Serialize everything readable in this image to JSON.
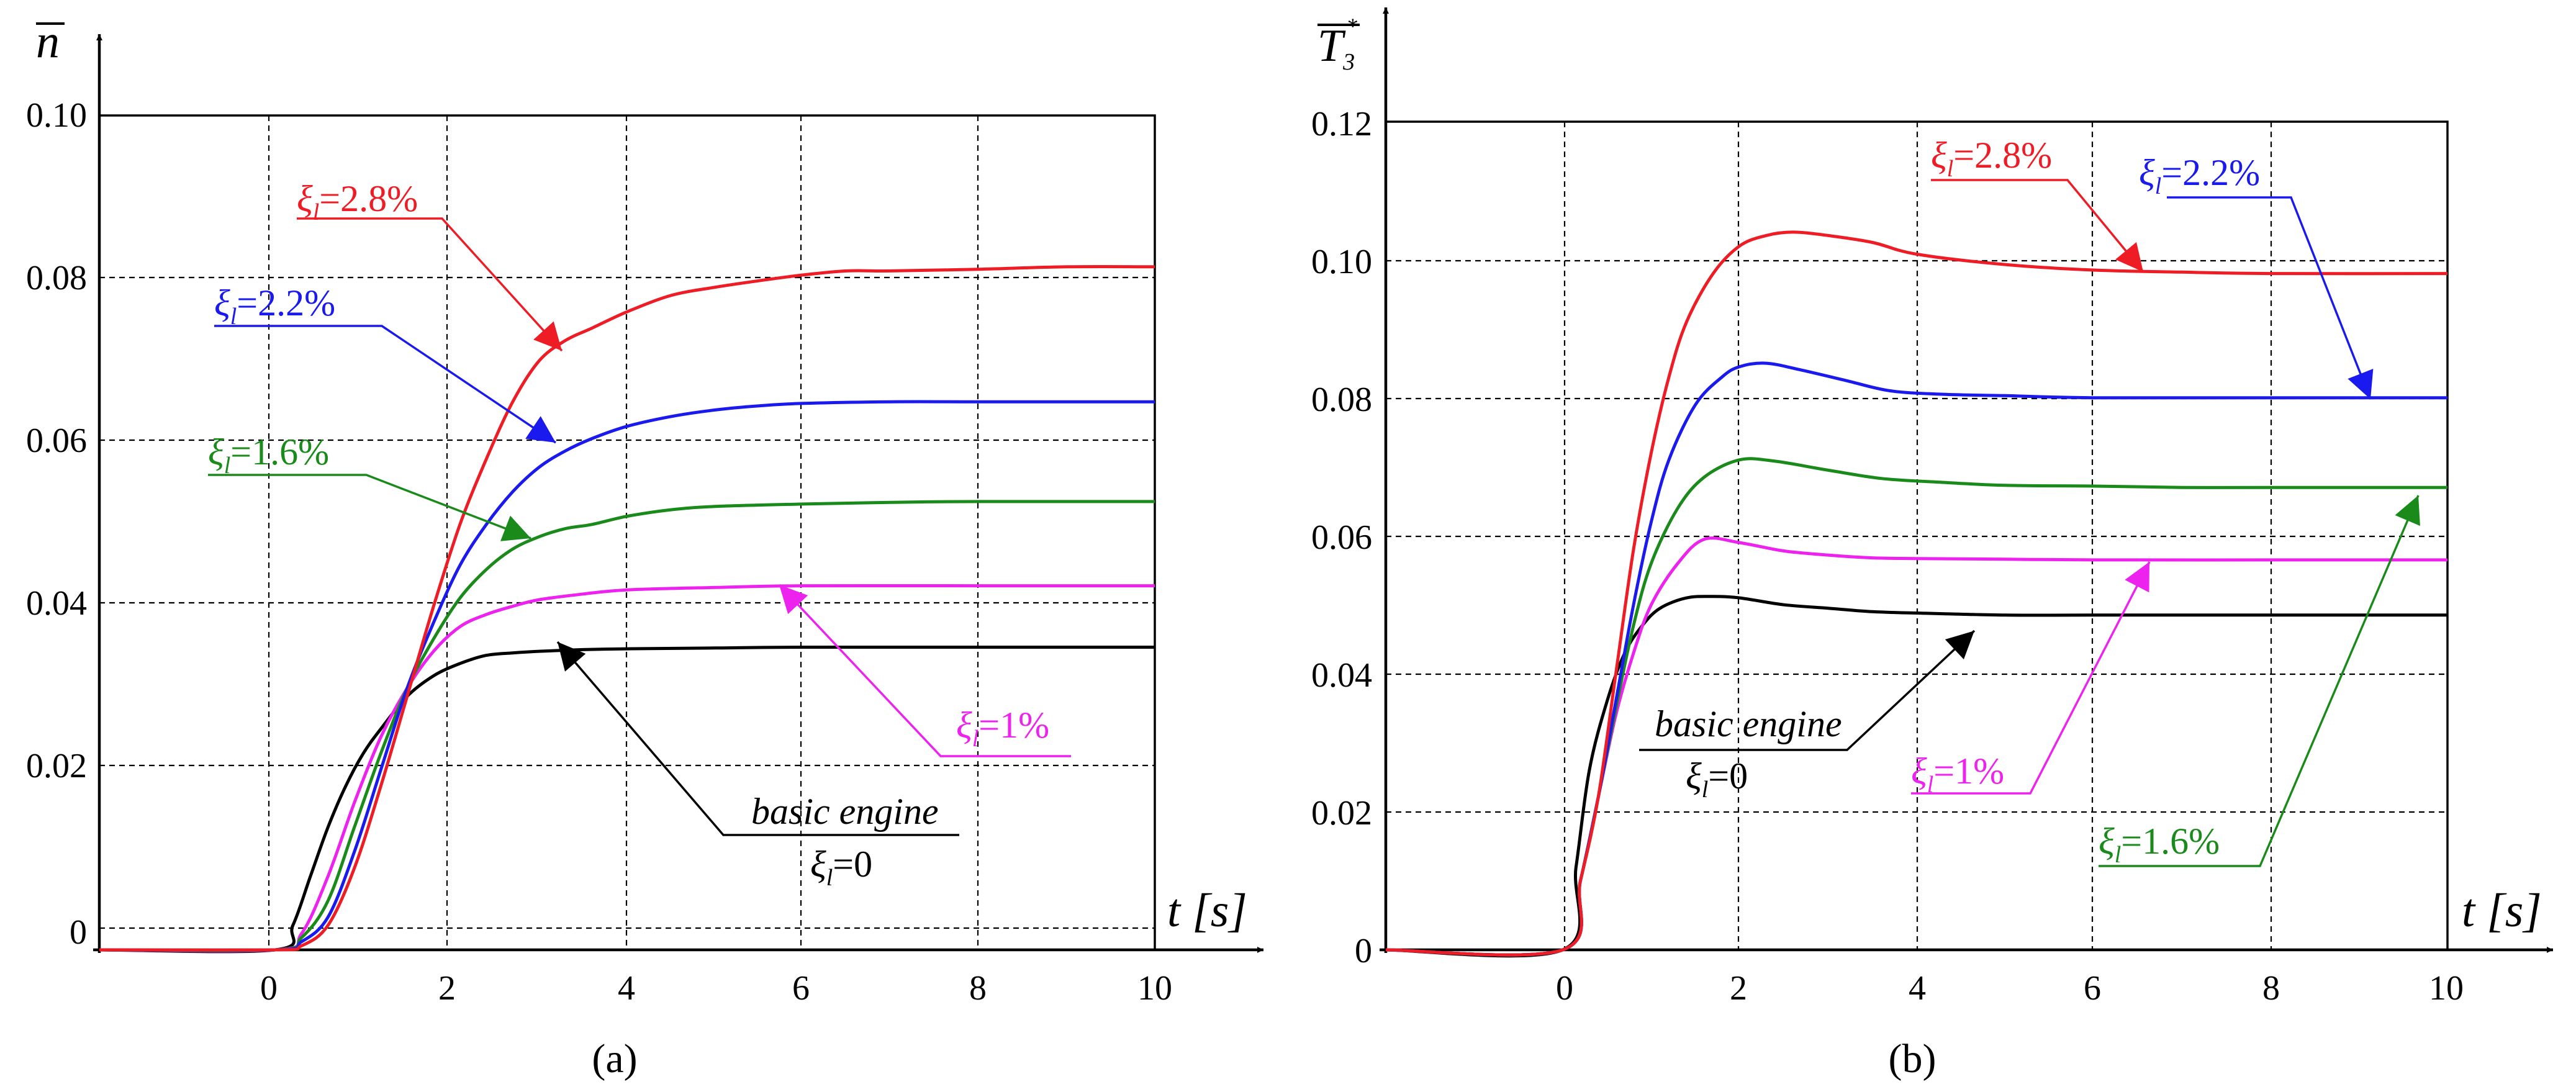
{
  "panels": {
    "a": {
      "subfigure": "(a)",
      "ylabel": "n",
      "xlabel": "t [s]",
      "xticks": [
        "0",
        "2",
        "4",
        "6",
        "8",
        "10"
      ],
      "yticks": [
        "0",
        "0.02",
        "0.04",
        "0.06",
        "0.08",
        "0.10"
      ],
      "annotations": {
        "red": {
          "greek": "ξ",
          "sub": "l",
          "value": "=2.8%"
        },
        "blue": {
          "greek": "ξ",
          "sub": "l",
          "value": "=2.2%"
        },
        "green": {
          "greek": "ξ",
          "sub": "l",
          "value": "=1.6%"
        },
        "magenta": {
          "greek": "ξ",
          "sub": "l",
          "value": "=1%"
        },
        "black": {
          "line1": "basic engine",
          "greek": "ξ",
          "sub": "l",
          "value": "=0"
        }
      }
    },
    "b": {
      "subfigure": "(b)",
      "ylabel_base": "T",
      "ylabel_sub": "3",
      "ylabel_sup": "*",
      "xlabel": "t [s]",
      "xticks": [
        "0",
        "2",
        "4",
        "6",
        "8",
        "10"
      ],
      "yticks": [
        "0",
        "0.02",
        "0.04",
        "0.06",
        "0.08",
        "0.10",
        "0.12"
      ],
      "annotations": {
        "red": {
          "greek": "ξ",
          "sub": "l",
          "value": "=2.8%"
        },
        "blue": {
          "greek": "ξ",
          "sub": "l",
          "value": "=2.2%"
        },
        "green": {
          "greek": "ξ",
          "sub": "l",
          "value": "=1.6%"
        },
        "magenta": {
          "greek": "ξ",
          "sub": "l",
          "value": "=1%"
        },
        "black": {
          "line1": "basic engine",
          "greek": "ξ",
          "sub": "l",
          "value": "=0"
        }
      }
    }
  },
  "colors": {
    "red": "#ee1c25",
    "blue": "#1a1aee",
    "green": "#1a8a1a",
    "magenta": "#ee22ee",
    "black": "#000000"
  },
  "chart_data": [
    {
      "type": "line",
      "title": "(a)",
      "xlabel": "t [s]",
      "ylabel": "n (overline)",
      "xlim": [
        -2,
        10
      ],
      "ylim": [
        -0.002,
        0.1
      ],
      "grid": true,
      "series": [
        {
          "name": "ξl=2.8%",
          "color": "red",
          "x": [
            -2,
            0,
            0.3,
            0.6,
            0.9,
            1.2,
            1.5,
            1.8,
            2.1,
            2.4,
            2.7,
            3.0,
            3.3,
            3.6,
            4.0,
            4.5,
            5.0,
            5.5,
            6.0,
            6.5,
            7.0,
            8.0,
            9.0,
            10.0
          ],
          "y": [
            -0.002,
            -0.002,
            -0.0015,
            0.001,
            0.008,
            0.018,
            0.029,
            0.04,
            0.05,
            0.058,
            0.065,
            0.07,
            0.0725,
            0.074,
            0.076,
            0.078,
            0.079,
            0.0798,
            0.0805,
            0.081,
            0.081,
            0.0812,
            0.0815,
            0.0815
          ]
        },
        {
          "name": "ξl=2.2%",
          "color": "blue",
          "x": [
            -2,
            0,
            0.3,
            0.6,
            0.9,
            1.2,
            1.5,
            1.8,
            2.1,
            2.4,
            2.7,
            3.0,
            3.3,
            3.6,
            4.0,
            4.5,
            5.0,
            5.5,
            6.0,
            7.0,
            8.0,
            10.0
          ],
          "y": [
            -0.002,
            -0.002,
            -0.001,
            0.002,
            0.01,
            0.02,
            0.03,
            0.038,
            0.045,
            0.05,
            0.054,
            0.057,
            0.059,
            0.0605,
            0.062,
            0.0632,
            0.064,
            0.0645,
            0.0648,
            0.065,
            0.065,
            0.065
          ]
        },
        {
          "name": "ξl=1.6%",
          "color": "green",
          "x": [
            -2,
            0,
            0.3,
            0.6,
            0.9,
            1.2,
            1.5,
            1.8,
            2.1,
            2.4,
            2.7,
            3.0,
            3.3,
            3.6,
            4.0,
            4.5,
            5.0,
            6.0,
            7.0,
            8.0,
            10.0
          ],
          "y": [
            -0.002,
            -0.002,
            -0.0005,
            0.004,
            0.013,
            0.022,
            0.03,
            0.036,
            0.041,
            0.0445,
            0.047,
            0.0485,
            0.0495,
            0.05,
            0.051,
            0.0518,
            0.0522,
            0.0525,
            0.0527,
            0.0528,
            0.0528
          ]
        },
        {
          "name": "ξl=1%",
          "color": "magenta",
          "x": [
            -2,
            0,
            0.3,
            0.6,
            0.9,
            1.2,
            1.5,
            1.8,
            2.1,
            2.4,
            2.7,
            3.0,
            3.5,
            4.0,
            5.0,
            6.0,
            8.0,
            10.0
          ],
          "y": [
            -0.002,
            -0.002,
            0.0,
            0.007,
            0.016,
            0.024,
            0.03,
            0.0345,
            0.0375,
            0.039,
            0.04,
            0.0408,
            0.0415,
            0.042,
            0.0423,
            0.0425,
            0.0425,
            0.0425
          ]
        },
        {
          "name": "basic engine ξl=0",
          "color": "black",
          "x": [
            -2,
            0,
            0.2,
            0.4,
            0.6,
            0.8,
            1.0,
            1.2,
            1.5,
            1.8,
            2.1,
            2.4,
            2.7,
            3.0,
            3.5,
            4.0,
            5.0,
            6.0,
            8.0,
            10.0
          ],
          "y": [
            -0.002,
            -0.002,
            0.001,
            0.007,
            0.013,
            0.018,
            0.022,
            0.025,
            0.029,
            0.0315,
            0.033,
            0.034,
            0.0343,
            0.0345,
            0.0347,
            0.0348,
            0.0349,
            0.035,
            0.035,
            0.035
          ]
        }
      ]
    },
    {
      "type": "line",
      "title": "(b)",
      "xlabel": "t [s]",
      "ylabel": "T3* (overline)",
      "xlim": [
        -2,
        10
      ],
      "ylim": [
        0,
        0.12
      ],
      "grid": true,
      "series": [
        {
          "name": "ξl=2.8%",
          "color": "red",
          "x": [
            -2,
            0,
            0.2,
            0.4,
            0.6,
            0.8,
            1.0,
            1.2,
            1.4,
            1.7,
            2.0,
            2.3,
            2.6,
            3.0,
            3.5,
            4.0,
            5.0,
            6.0,
            7.0,
            8.0,
            10.0
          ],
          "y": [
            0,
            0,
            0.01,
            0.022,
            0.04,
            0.058,
            0.072,
            0.083,
            0.091,
            0.098,
            0.102,
            0.1035,
            0.104,
            0.1035,
            0.1025,
            0.1008,
            0.0993,
            0.0985,
            0.0982,
            0.098,
            0.098
          ]
        },
        {
          "name": "ξl=2.2%",
          "color": "blue",
          "x": [
            -2,
            0,
            0.2,
            0.4,
            0.6,
            0.8,
            1.0,
            1.2,
            1.5,
            1.8,
            2.0,
            2.3,
            2.7,
            3.2,
            3.7,
            4.3,
            5.0,
            6.0,
            8.0,
            10.0
          ],
          "y": [
            0,
            0,
            0.01,
            0.022,
            0.036,
            0.05,
            0.062,
            0.071,
            0.079,
            0.083,
            0.0845,
            0.085,
            0.084,
            0.0825,
            0.081,
            0.0805,
            0.0803,
            0.08,
            0.08,
            0.08
          ]
        },
        {
          "name": "ξl=1.6%",
          "color": "green",
          "x": [
            -2,
            0,
            0.2,
            0.4,
            0.6,
            0.8,
            1.0,
            1.3,
            1.6,
            2.0,
            2.4,
            3.0,
            3.6,
            4.2,
            5.0,
            6.0,
            7.0,
            8.0,
            10.0
          ],
          "y": [
            0,
            0,
            0.01,
            0.022,
            0.035,
            0.047,
            0.056,
            0.064,
            0.0685,
            0.071,
            0.0708,
            0.0695,
            0.0683,
            0.0678,
            0.0673,
            0.0672,
            0.067,
            0.067,
            0.067
          ]
        },
        {
          "name": "ξl=1%",
          "color": "magenta",
          "x": [
            -2,
            0,
            0.2,
            0.4,
            0.6,
            0.8,
            1.0,
            1.3,
            1.6,
            2.0,
            2.5,
            3.0,
            3.5,
            4.0,
            5.0,
            6.0,
            8.0,
            10.0
          ],
          "y": [
            0,
            0,
            0.01,
            0.022,
            0.034,
            0.043,
            0.05,
            0.056,
            0.0595,
            0.059,
            0.0578,
            0.0572,
            0.0568,
            0.0567,
            0.0566,
            0.0565,
            0.0565,
            0.0565
          ]
        },
        {
          "name": "basic engine ξl=0",
          "color": "black",
          "x": [
            -2,
            0,
            0.15,
            0.3,
            0.5,
            0.7,
            0.9,
            1.1,
            1.4,
            1.7,
            2.0,
            2.5,
            3.0,
            3.5,
            4.0,
            5.0,
            6.0,
            8.0,
            10.0
          ],
          "y": [
            0,
            0,
            0.012,
            0.026,
            0.036,
            0.043,
            0.047,
            0.0495,
            0.051,
            0.0512,
            0.051,
            0.05,
            0.0495,
            0.049,
            0.0488,
            0.0485,
            0.0485,
            0.0485,
            0.0485
          ]
        }
      ]
    }
  ]
}
